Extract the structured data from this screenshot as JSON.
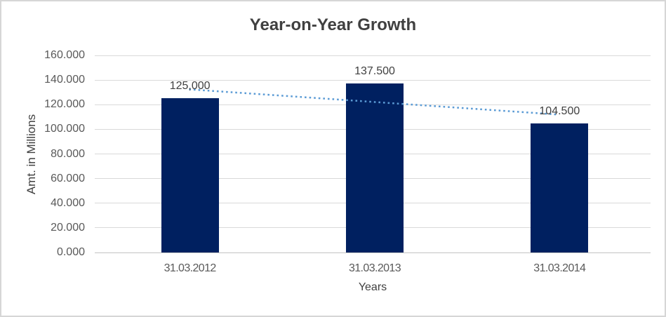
{
  "window": {
    "background": "#ffffff",
    "border_color": "#d6d6d6"
  },
  "chart_data": {
    "type": "bar",
    "title": "Year-on-Year Growth",
    "categories": [
      "31.03.2012",
      "31.03.2013",
      "31.03.2014"
    ],
    "values": [
      125.0,
      137.5,
      104.5
    ],
    "data_labels": [
      "125,000",
      "137.500",
      "104.500"
    ],
    "xlabel": "Years",
    "ylabel": "Amt. in Millions",
    "ylim": [
      0,
      160
    ],
    "ytick_step": 20,
    "ytick_labels": [
      "0.000",
      "20.000",
      "40.000",
      "60.000",
      "80.000",
      "100.000",
      "120.000",
      "140.000",
      "160.000"
    ],
    "grid": true,
    "legend": "none",
    "bar_color": "#002060",
    "title_color": "#404040",
    "data_label_color": "#404040",
    "tick_label_color": "#595959",
    "gridline_color": "#d9d9d9",
    "axis_line_color": "#c3c3c3",
    "trendline": {
      "type": "linear",
      "style": "dotted",
      "color": "#5B9BD5",
      "start_value": 132.4,
      "end_value": 111.9
    }
  }
}
